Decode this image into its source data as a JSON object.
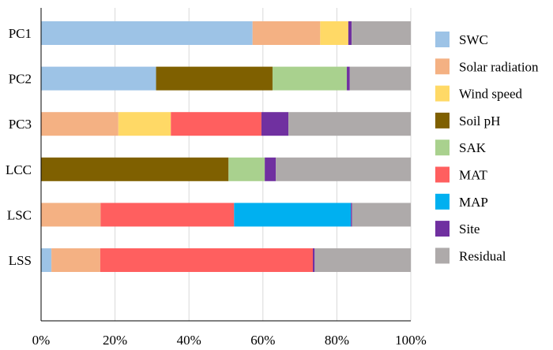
{
  "chart_data": {
    "type": "bar",
    "orientation": "horizontal",
    "stacked": true,
    "title": "",
    "xlabel": "",
    "ylabel": "",
    "xlim": [
      0,
      100
    ],
    "x_ticks": [
      "0%",
      "20%",
      "40%",
      "60%",
      "80%",
      "100%"
    ],
    "grid": true,
    "legend_position": "right",
    "categories": [
      "PC1",
      "PC2",
      "PC3",
      "LCC",
      "LSC",
      "LSS"
    ],
    "series": [
      {
        "name": "SWC",
        "color": "#9DC3E6",
        "values": [
          57.2,
          31.1,
          0,
          0,
          0,
          2.8
        ]
      },
      {
        "name": "Solar radiation",
        "color": "#F4B183",
        "values": [
          18.3,
          0,
          20.9,
          0,
          16.1,
          13.2
        ]
      },
      {
        "name": "Wind speed",
        "color": "#FFD966",
        "values": [
          7.6,
          0,
          14.2,
          0,
          0,
          0
        ]
      },
      {
        "name": "Soil pH",
        "color": "#7F6000",
        "values": [
          0,
          31.5,
          0,
          50.7,
          0,
          0
        ]
      },
      {
        "name": "SAK",
        "color": "#A9D18E",
        "values": [
          0,
          20.1,
          0,
          9.8,
          0,
          0
        ]
      },
      {
        "name": "MAT",
        "color": "#FF5F5F",
        "values": [
          0,
          0,
          24.5,
          0,
          36.1,
          57.5
        ]
      },
      {
        "name": "MAP",
        "color": "#00B0F0",
        "values": [
          0,
          0,
          0,
          0,
          31.6,
          0
        ]
      },
      {
        "name": "Site",
        "color": "#7030A0",
        "values": [
          0.9,
          0.8,
          7.3,
          3.0,
          0.3,
          0.5
        ]
      },
      {
        "name": "Residual",
        "color": "#AEAAAA",
        "values": [
          16.0,
          16.5,
          33.1,
          36.5,
          15.9,
          26.0
        ]
      }
    ]
  }
}
